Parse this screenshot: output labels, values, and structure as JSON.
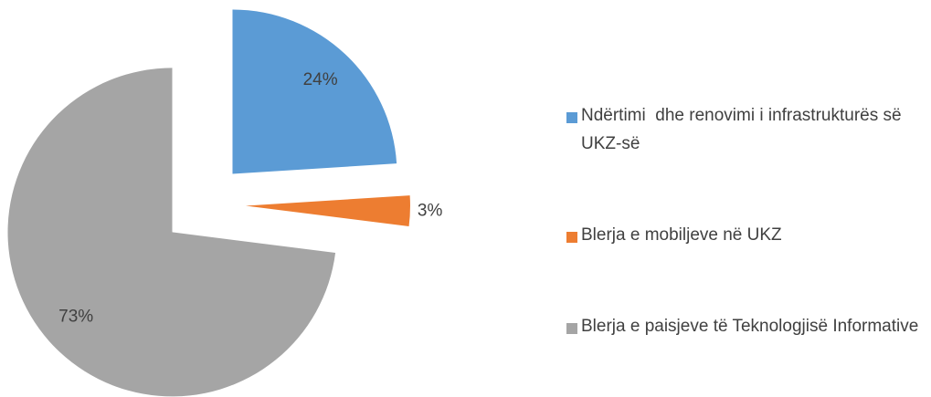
{
  "chart_data": {
    "type": "pie",
    "categories": [
      "Ndërtimi  dhe renovimi i infrastrukturës së UKZ-së",
      "Blerja e mobiljeve në UKZ",
      "Blerja e paisjeve të Teknologjisë Informative"
    ],
    "values": [
      24,
      3,
      73
    ],
    "value_labels": [
      "24%",
      "3%",
      "73%"
    ],
    "colors": [
      "#5b9bd5",
      "#ed7d31",
      "#a5a5a5"
    ],
    "legend": "right"
  }
}
